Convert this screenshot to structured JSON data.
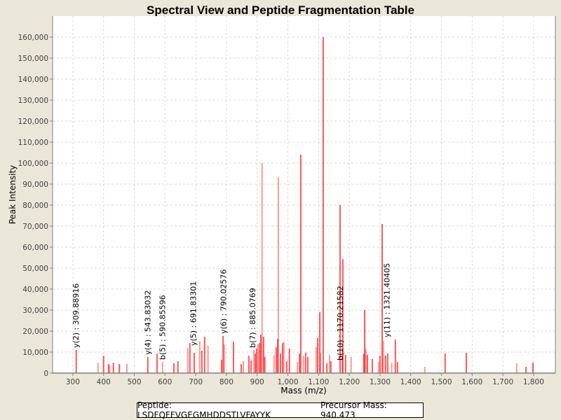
{
  "chart_data": {
    "type": "bar",
    "title": "Spectral View and Peptide Fragmentation Table",
    "xlabel": "Mass (m/z)",
    "ylabel": "Peak Intensity",
    "xlim": [
      234,
      1871
    ],
    "ylim": [
      0,
      170000
    ],
    "xticks": [
      300,
      400,
      500,
      600,
      700,
      800,
      900,
      1000,
      1100,
      1200,
      1300,
      1400,
      1500,
      1600,
      1700,
      1800
    ],
    "xtick_labels": [
      "300",
      "400",
      "500",
      "600",
      "700",
      "800",
      "900",
      "1,000",
      "1,100",
      "1,200",
      "1,300",
      "1,400",
      "1,500",
      "1,600",
      "1,700",
      "1,800"
    ],
    "yticks": [
      0,
      10000,
      20000,
      30000,
      40000,
      50000,
      60000,
      70000,
      80000,
      90000,
      100000,
      110000,
      120000,
      130000,
      140000,
      150000,
      160000
    ],
    "ytick_labels": [
      "0",
      "10,000",
      "20,000",
      "30,000",
      "40,000",
      "50,000",
      "60,000",
      "70,000",
      "80,000",
      "90,000",
      "100,000",
      "110,000",
      "120,000",
      "130,000",
      "140,000",
      "150,000",
      "160,000"
    ],
    "grid": true,
    "bar_color": "#ff0000",
    "peaks": [
      [
        311,
        11000
      ],
      [
        382,
        5000
      ],
      [
        400,
        8300
      ],
      [
        416,
        4300
      ],
      [
        420,
        3800
      ],
      [
        432,
        5000
      ],
      [
        451,
        4300
      ],
      [
        476,
        4300
      ],
      [
        544,
        7700
      ],
      [
        574,
        9300
      ],
      [
        592,
        5300
      ],
      [
        629,
        4700
      ],
      [
        642,
        5700
      ],
      [
        674,
        12000
      ],
      [
        681,
        14300
      ],
      [
        695,
        9700
      ],
      [
        713,
        15300
      ],
      [
        720,
        10700
      ],
      [
        729,
        17300
      ],
      [
        740,
        13000
      ],
      [
        784,
        6300
      ],
      [
        789,
        17700
      ],
      [
        793,
        13700
      ],
      [
        823,
        15000
      ],
      [
        848,
        4300
      ],
      [
        855,
        5700
      ],
      [
        873,
        8300
      ],
      [
        880,
        6000
      ],
      [
        889,
        11000
      ],
      [
        894,
        9300
      ],
      [
        898,
        11700
      ],
      [
        903,
        13700
      ],
      [
        908,
        14300
      ],
      [
        912,
        18300
      ],
      [
        916,
        100000
      ],
      [
        921,
        17300
      ],
      [
        925,
        7700
      ],
      [
        955,
        8700
      ],
      [
        962,
        12300
      ],
      [
        967,
        16300
      ],
      [
        969,
        93300
      ],
      [
        976,
        9300
      ],
      [
        983,
        14300
      ],
      [
        987,
        15000
      ],
      [
        996,
        5700
      ],
      [
        1005,
        11700
      ],
      [
        1031,
        5300
      ],
      [
        1038,
        9300
      ],
      [
        1042,
        104000
      ],
      [
        1051,
        8300
      ],
      [
        1058,
        9700
      ],
      [
        1065,
        7700
      ],
      [
        1092,
        12300
      ],
      [
        1097,
        16700
      ],
      [
        1104,
        29000
      ],
      [
        1106,
        9700
      ],
      [
        1115,
        160000
      ],
      [
        1127,
        4700
      ],
      [
        1136,
        8700
      ],
      [
        1140,
        5700
      ],
      [
        1170,
        80000
      ],
      [
        1177,
        10300
      ],
      [
        1179,
        54300
      ],
      [
        1188,
        8700
      ],
      [
        1206,
        7700
      ],
      [
        1247,
        9300
      ],
      [
        1250,
        30000
      ],
      [
        1254,
        11700
      ],
      [
        1259,
        8700
      ],
      [
        1275,
        6700
      ],
      [
        1295,
        5300
      ],
      [
        1300,
        8300
      ],
      [
        1307,
        71000
      ],
      [
        1311,
        15300
      ],
      [
        1318,
        8300
      ],
      [
        1325,
        9300
      ],
      [
        1338,
        5000
      ],
      [
        1350,
        16000
      ],
      [
        1357,
        5300
      ],
      [
        1446,
        3000
      ],
      [
        1512,
        9300
      ],
      [
        1581,
        9700
      ],
      [
        1745,
        4700
      ],
      [
        1775,
        3000
      ],
      [
        1798,
        5000
      ]
    ],
    "annotations": [
      {
        "label": "y(2) : 309.88916",
        "mass": 309.88916,
        "intensity": 11000
      },
      {
        "label": "y(4) : 543.83032",
        "mass": 543.83032,
        "intensity": 7700
      },
      {
        "label": "b(5) : 590.85596",
        "mass": 590.85596,
        "intensity": 5300
      },
      {
        "label": "y(5) : 691.83301",
        "mass": 691.83301,
        "intensity": 12000
      },
      {
        "label": "y(6) : 790.02576",
        "mass": 790.02576,
        "intensity": 17700
      },
      {
        "label": "b(7) : 885.0769",
        "mass": 885.0769,
        "intensity": 11000
      },
      {
        "label": "b(10) : 1170.21582",
        "mass": 1170.21582,
        "intensity": 5000
      },
      {
        "label": "y(11) : 1321.40405",
        "mass": 1321.40405,
        "intensity": 16000
      }
    ]
  },
  "legend": {
    "peptide": "Peptide: LSDFQFFVGEGMHDDSTLVFAYYK",
    "precursor": "Precursor Mass: 940.473"
  }
}
